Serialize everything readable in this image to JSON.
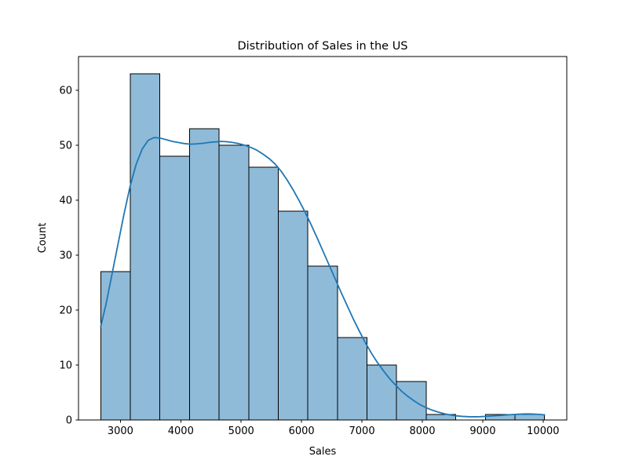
{
  "figure": {
    "background": "#ffffff"
  },
  "chart_data": {
    "type": "histogram",
    "title": "Distribution of Sales in the US",
    "xlabel": "Sales",
    "ylabel": "Count",
    "legend": "none",
    "grid": false,
    "xlim": [
      2306,
      10392
    ],
    "ylim": [
      0,
      66.15
    ],
    "x_ticks": [
      3000,
      4000,
      5000,
      6000,
      7000,
      8000,
      9000,
      10000
    ],
    "y_ticks": [
      0,
      10,
      20,
      30,
      40,
      50,
      60
    ],
    "bin_edges": [
      2674,
      3164,
      3654,
      4144,
      4634,
      5124,
      5614,
      6104,
      6594,
      7084,
      7574,
      8064,
      8554,
      9044,
      9534,
      10024
    ],
    "counts": [
      27,
      63,
      48,
      53,
      50,
      46,
      38,
      28,
      15,
      10,
      7,
      1,
      0,
      1,
      1
    ],
    "colors": {
      "bar_fill": "#8fbbd9",
      "bar_edge": "#000000",
      "kde_line": "#1f77b4",
      "spine": "#000000",
      "text": "#000000"
    },
    "kde_curve": [
      [
        2674,
        17.0
      ],
      [
        2760,
        21.0
      ],
      [
        2860,
        26.5
      ],
      [
        2960,
        32.0
      ],
      [
        3060,
        37.5
      ],
      [
        3160,
        42.5
      ],
      [
        3260,
        46.5
      ],
      [
        3360,
        49.3
      ],
      [
        3460,
        50.9
      ],
      [
        3560,
        51.4
      ],
      [
        3660,
        51.3
      ],
      [
        3760,
        51.0
      ],
      [
        3860,
        50.7
      ],
      [
        3960,
        50.5
      ],
      [
        4060,
        50.3
      ],
      [
        4160,
        50.2
      ],
      [
        4260,
        50.25
      ],
      [
        4360,
        50.35
      ],
      [
        4460,
        50.5
      ],
      [
        4560,
        50.6
      ],
      [
        4660,
        50.7
      ],
      [
        4760,
        50.65
      ],
      [
        4860,
        50.5
      ],
      [
        4960,
        50.3
      ],
      [
        5060,
        50.0
      ],
      [
        5160,
        49.6
      ],
      [
        5260,
        49.1
      ],
      [
        5360,
        48.4
      ],
      [
        5460,
        47.6
      ],
      [
        5560,
        46.6
      ],
      [
        5660,
        45.3
      ],
      [
        5760,
        43.7
      ],
      [
        5860,
        41.9
      ],
      [
        5960,
        39.9
      ],
      [
        6060,
        37.8
      ],
      [
        6160,
        35.5
      ],
      [
        6260,
        33.1
      ],
      [
        6360,
        30.6
      ],
      [
        6460,
        28.1
      ],
      [
        6560,
        25.6
      ],
      [
        6660,
        23.1
      ],
      [
        6760,
        20.7
      ],
      [
        6860,
        18.3
      ],
      [
        6960,
        16.1
      ],
      [
        7060,
        14.0
      ],
      [
        7160,
        12.1
      ],
      [
        7260,
        10.4
      ],
      [
        7360,
        8.9
      ],
      [
        7460,
        7.5
      ],
      [
        7560,
        6.3
      ],
      [
        7660,
        5.2
      ],
      [
        7760,
        4.3
      ],
      [
        7860,
        3.5
      ],
      [
        7960,
        2.8
      ],
      [
        8060,
        2.25
      ],
      [
        8160,
        1.8
      ],
      [
        8260,
        1.45
      ],
      [
        8360,
        1.15
      ],
      [
        8460,
        0.92
      ],
      [
        8560,
        0.76
      ],
      [
        8660,
        0.65
      ],
      [
        8760,
        0.6
      ],
      [
        8860,
        0.58
      ],
      [
        8960,
        0.6
      ],
      [
        9060,
        0.66
      ],
      [
        9160,
        0.73
      ],
      [
        9260,
        0.8
      ],
      [
        9360,
        0.88
      ],
      [
        9460,
        0.96
      ],
      [
        9560,
        1.03
      ],
      [
        9660,
        1.08
      ],
      [
        9760,
        1.1
      ],
      [
        9860,
        1.07
      ],
      [
        9960,
        1.0
      ],
      [
        10024,
        0.93
      ]
    ]
  }
}
